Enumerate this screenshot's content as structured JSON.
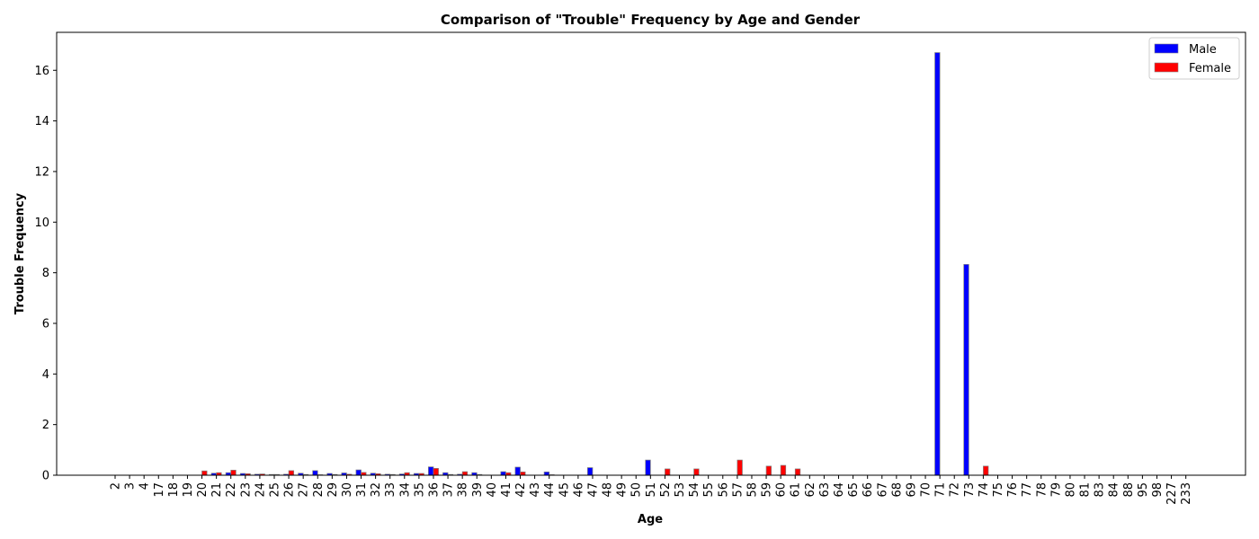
{
  "chart_data": {
    "type": "bar",
    "title": "Comparison of \"Trouble\" Frequency by Age and Gender",
    "xlabel": "Age",
    "ylabel": "Trouble Frequency",
    "ylim": [
      0,
      17.5
    ],
    "yticks": [
      0,
      2,
      4,
      6,
      8,
      10,
      12,
      14,
      16
    ],
    "grid": false,
    "legend_position": "top-right",
    "categories": [
      "2",
      "3",
      "4",
      "17",
      "18",
      "19",
      "20",
      "21",
      "22",
      "23",
      "24",
      "25",
      "26",
      "27",
      "28",
      "29",
      "30",
      "31",
      "32",
      "33",
      "34",
      "35",
      "36",
      "37",
      "38",
      "39",
      "40",
      "41",
      "42",
      "43",
      "44",
      "45",
      "46",
      "47",
      "48",
      "49",
      "50",
      "51",
      "52",
      "53",
      "54",
      "55",
      "56",
      "57",
      "58",
      "59",
      "60",
      "61",
      "62",
      "63",
      "64",
      "65",
      "66",
      "67",
      "68",
      "69",
      "70",
      "71",
      "72",
      "73",
      "74",
      "75",
      "76",
      "77",
      "78",
      "79",
      "80",
      "81",
      "83",
      "84",
      "88",
      "95",
      "98",
      "227",
      "233"
    ],
    "series": [
      {
        "name": "Male",
        "color": "#0000ff",
        "values": [
          0,
          0,
          0,
          0,
          0,
          0,
          0,
          0.08,
          0.1,
          0.07,
          0.04,
          0.03,
          0.04,
          0.08,
          0.18,
          0.07,
          0.09,
          0.21,
          0.08,
          0.04,
          0.05,
          0.07,
          0.33,
          0.1,
          0.04,
          0.1,
          0,
          0.14,
          0.32,
          0,
          0.13,
          0,
          0,
          0.3,
          0,
          0,
          0,
          0.6,
          0,
          0,
          0,
          0,
          0,
          0,
          0,
          0,
          0,
          0,
          0,
          0,
          0,
          0,
          0,
          0,
          0,
          0,
          0,
          16.7,
          0,
          8.33,
          0,
          0,
          0,
          0,
          0,
          0,
          0,
          0,
          0,
          0,
          0,
          0,
          0,
          0,
          0
        ]
      },
      {
        "name": "Female",
        "color": "#ff0000",
        "values": [
          0,
          0,
          0,
          0,
          0,
          0,
          0.17,
          0.1,
          0.2,
          0.06,
          0.05,
          0.03,
          0.18,
          0.03,
          0.02,
          0.03,
          0.04,
          0.11,
          0.06,
          0.03,
          0.1,
          0.07,
          0.27,
          0.03,
          0.14,
          0.03,
          0,
          0.1,
          0.13,
          0,
          0.02,
          0,
          0,
          0,
          0,
          0,
          0,
          0,
          0.25,
          0,
          0.25,
          0,
          0,
          0.6,
          0,
          0.36,
          0.39,
          0.25,
          0,
          0,
          0,
          0,
          0,
          0,
          0,
          0,
          0,
          0,
          0,
          0,
          0.36,
          0,
          0,
          0,
          0,
          0,
          0,
          0,
          0,
          0,
          0,
          0,
          0,
          0,
          0
        ]
      }
    ]
  }
}
